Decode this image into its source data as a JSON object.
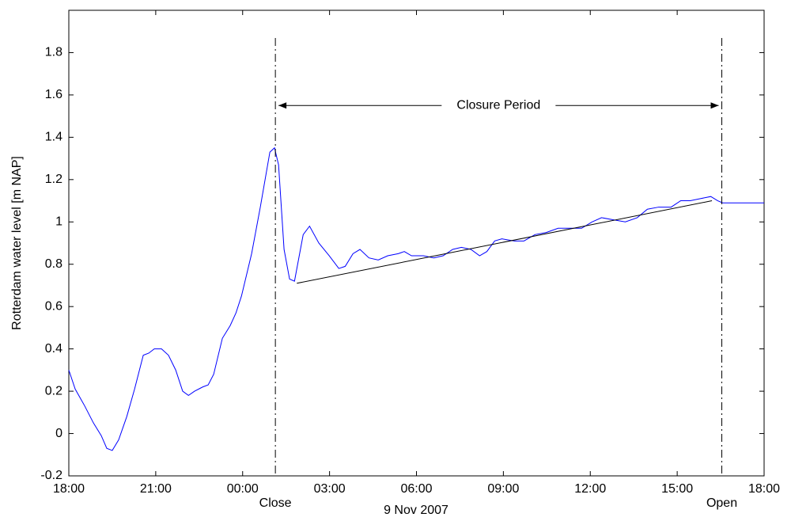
{
  "chart_data": {
    "type": "line",
    "ylabel": "Rotterdam water level [m NAP]",
    "xlabel": "9 Nov 2007",
    "xlim": [
      0,
      24
    ],
    "xticks": [
      {
        "value": 0,
        "label": "18:00"
      },
      {
        "value": 3,
        "label": "21:00"
      },
      {
        "value": 6,
        "label": "00:00"
      },
      {
        "value": 9,
        "label": "03:00"
      },
      {
        "value": 12,
        "label": "06:00"
      },
      {
        "value": 15,
        "label": "09:00"
      },
      {
        "value": 18,
        "label": "12:00"
      },
      {
        "value": 21,
        "label": "15:00"
      },
      {
        "value": 24,
        "label": "18:00"
      }
    ],
    "ylim": [
      -0.2,
      2.0
    ],
    "yticks": [
      -0.2,
      0,
      0.2,
      0.4,
      0.6,
      0.8,
      1,
      1.2,
      1.4,
      1.6,
      1.8
    ],
    "series": [
      {
        "color": "#0000ff",
        "x": [
          0,
          0.22,
          0.55,
          0.85,
          1.12,
          1.31,
          1.5,
          1.72,
          2.0,
          2.27,
          2.57,
          2.76,
          2.95,
          3.2,
          3.44,
          3.69,
          3.93,
          4.13,
          4.34,
          4.62,
          4.81,
          5.0,
          5.3,
          5.57,
          5.77,
          5.96,
          6.31,
          6.61,
          6.94,
          7.1,
          7.24,
          7.43,
          7.62,
          7.79,
          8.09,
          8.31,
          8.63,
          8.99,
          9.32,
          9.54,
          9.81,
          10.05,
          10.36,
          10.68,
          11.01,
          11.37,
          11.58,
          11.83,
          12.24,
          12.6,
          12.92,
          13.25,
          13.55,
          13.88,
          14.18,
          14.43,
          14.7,
          14.95,
          15.38,
          15.71,
          16.09,
          16.48,
          16.89,
          17.3,
          17.7,
          18.06,
          18.39,
          18.8,
          19.21,
          19.62,
          19.97,
          20.36,
          20.79,
          21.12,
          21.45,
          21.8,
          22.16,
          22.4,
          22.57,
          24
        ],
        "values": [
          0.3,
          0.21,
          0.13,
          0.05,
          -0.01,
          -0.07,
          -0.08,
          -0.03,
          0.08,
          0.21,
          0.37,
          0.38,
          0.4,
          0.4,
          0.37,
          0.3,
          0.2,
          0.18,
          0.2,
          0.22,
          0.23,
          0.28,
          0.45,
          0.51,
          0.57,
          0.65,
          0.85,
          1.07,
          1.33,
          1.35,
          1.27,
          0.87,
          0.73,
          0.72,
          0.94,
          0.98,
          0.9,
          0.84,
          0.78,
          0.79,
          0.85,
          0.87,
          0.83,
          0.82,
          0.84,
          0.85,
          0.86,
          0.84,
          0.84,
          0.83,
          0.84,
          0.87,
          0.88,
          0.87,
          0.84,
          0.86,
          0.91,
          0.92,
          0.91,
          0.91,
          0.94,
          0.95,
          0.97,
          0.97,
          0.97,
          1.0,
          1.02,
          1.01,
          1.0,
          1.02,
          1.06,
          1.07,
          1.07,
          1.1,
          1.1,
          1.11,
          1.12,
          1.1,
          1.09,
          1.09
        ]
      },
      {
        "color": "#000000",
        "x": [
          7.87,
          22.2
        ],
        "values": [
          0.71,
          1.1
        ]
      }
    ],
    "markers": [
      {
        "label": "Close",
        "x": 7.13
      },
      {
        "label": "Open",
        "x": 22.54
      }
    ],
    "span_label": "Closure Period",
    "span_y": 1.55
  }
}
